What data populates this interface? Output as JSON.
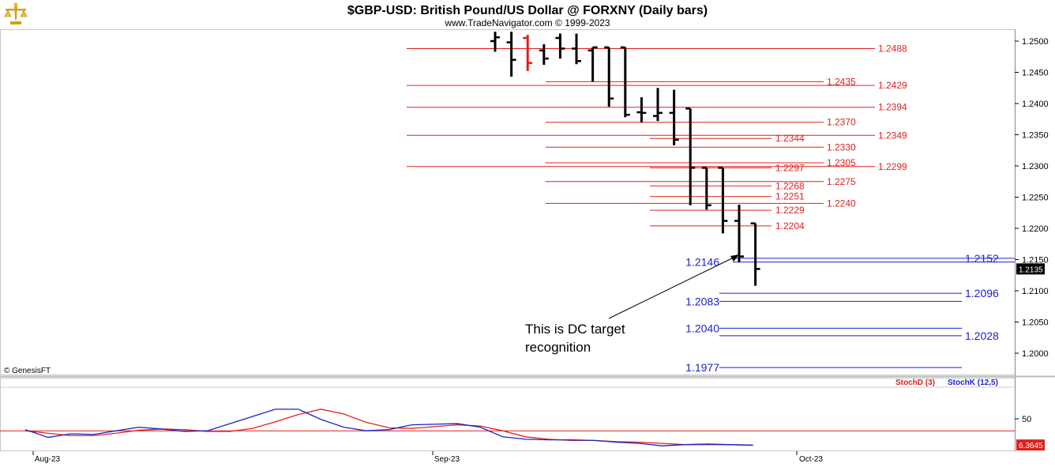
{
  "title": "$GBP-USD:  British Pound/US Dollar @ FORXNY  (Daily bars)",
  "subtitle": "www.TradeNavigator.com © 1999-2023",
  "copyright": "© GenesisFT",
  "annotation": [
    "This is DC target",
    "recognition"
  ],
  "logo_icon": "scales-logo-icon",
  "colors": {
    "bar": "#000000",
    "red_bar": "#e0201a",
    "red_level": "#e0201a",
    "blue_level": "#1e22c8",
    "stoch_d": "#e0201a",
    "stoch_k": "#1e22c8",
    "last_price_tag": "#000000",
    "stoch_tag": "#e0201a"
  },
  "chart_data": [
    {
      "type": "ohlc",
      "name": "price",
      "ylim": [
        1.195,
        1.2515
      ],
      "y_ticks": [
        "1.2500",
        "1.2450",
        "1.2400",
        "1.2350",
        "1.2300",
        "1.2250",
        "1.2200",
        "1.2150",
        "1.2100",
        "1.2050",
        "1.2000"
      ],
      "last_price": "1.2135",
      "bars": [
        {
          "o": 1.25,
          "h": 1.2515,
          "l": 1.2483,
          "c": 1.2506,
          "color": "black"
        },
        {
          "o": 1.2498,
          "h": 1.2515,
          "l": 1.2443,
          "c": 1.247,
          "color": "black"
        },
        {
          "o": 1.2505,
          "h": 1.251,
          "l": 1.2452,
          "c": 1.2465,
          "color": "red"
        },
        {
          "o": 1.2485,
          "h": 1.2495,
          "l": 1.2462,
          "c": 1.2472,
          "color": "black"
        },
        {
          "o": 1.2505,
          "h": 1.2512,
          "l": 1.2472,
          "c": 1.2488,
          "color": "black"
        },
        {
          "o": 1.2488,
          "h": 1.2512,
          "l": 1.2463,
          "c": 1.2468,
          "color": "black"
        },
        {
          "o": 1.2485,
          "h": 1.249,
          "l": 1.2435,
          "c": 1.249,
          "color": "black"
        },
        {
          "o": 1.249,
          "h": 1.249,
          "l": 1.2395,
          "c": 1.2408,
          "color": "black"
        },
        {
          "o": 1.249,
          "h": 1.249,
          "l": 1.2378,
          "c": 1.2382,
          "color": "black"
        },
        {
          "o": 1.2386,
          "h": 1.241,
          "l": 1.237,
          "c": 1.2385,
          "color": "black"
        },
        {
          "o": 1.238,
          "h": 1.2425,
          "l": 1.2372,
          "c": 1.2385,
          "color": "black"
        },
        {
          "o": 1.2385,
          "h": 1.2422,
          "l": 1.2333,
          "c": 1.2342,
          "color": "black"
        },
        {
          "o": 1.2392,
          "h": 1.2392,
          "l": 1.2237,
          "c": 1.2297,
          "color": "black"
        },
        {
          "o": 1.2297,
          "h": 1.2297,
          "l": 1.223,
          "c": 1.2237,
          "color": "black"
        },
        {
          "o": 1.2297,
          "h": 1.2297,
          "l": 1.2192,
          "c": 1.2212,
          "color": "black"
        },
        {
          "o": 1.2212,
          "h": 1.2238,
          "l": 1.2146,
          "c": 1.2155,
          "color": "black"
        },
        {
          "o": 1.2208,
          "h": 1.2208,
          "l": 1.2108,
          "c": 1.2135,
          "color": "black"
        }
      ],
      "red_levels": [
        {
          "value": 1.2488,
          "label": "1.2488",
          "start": 0,
          "label_side": "right"
        },
        {
          "value": 1.2435,
          "label": "1.2435",
          "start": 6,
          "label_side": "mid"
        },
        {
          "value": 1.2429,
          "label": "1.2429",
          "start": 0,
          "label_side": "right"
        },
        {
          "value": 1.2394,
          "label": "1.2394",
          "start": 0,
          "label_side": "right"
        },
        {
          "value": 1.237,
          "label": "1.2370",
          "start": 6,
          "label_side": "mid"
        },
        {
          "value": 1.2349,
          "label": "1.2349",
          "start": 0,
          "label_side": "right"
        },
        {
          "value": 1.2344,
          "label": "1.2344",
          "start": 11,
          "label_side": "near"
        },
        {
          "value": 1.233,
          "label": "1.2330",
          "start": 6,
          "label_side": "mid"
        },
        {
          "value": 1.2305,
          "label": "1.2305",
          "start": 6,
          "label_side": "mid"
        },
        {
          "value": 1.2299,
          "label": "1.2299",
          "start": 0,
          "label_side": "right"
        },
        {
          "value": 1.2297,
          "label": "1.2297",
          "start": 11,
          "label_side": "near"
        },
        {
          "value": 1.2275,
          "label": "1.2275",
          "start": 6,
          "label_side": "mid"
        },
        {
          "value": 1.2268,
          "label": "1.2268",
          "start": 11,
          "label_side": "near"
        },
        {
          "value": 1.2251,
          "label": "1.2251",
          "start": 11,
          "label_side": "near"
        },
        {
          "value": 1.224,
          "label": "1.2240",
          "start": 6,
          "label_side": "mid"
        },
        {
          "value": 1.2229,
          "label": "1.2229",
          "start": 11,
          "label_side": "near"
        },
        {
          "value": 1.2204,
          "label": "1.2204",
          "start": 11,
          "label_side": "near"
        }
      ],
      "blue_levels": [
        {
          "value": 1.2152,
          "label": "1.2152",
          "label_side": "right"
        },
        {
          "value": 1.2146,
          "label": "1.2146",
          "label_side": "left"
        },
        {
          "value": 1.2096,
          "label": "1.2096",
          "label_side": "right"
        },
        {
          "value": 1.2083,
          "label": "1.2083",
          "label_side": "left"
        },
        {
          "value": 1.204,
          "label": "1.2040",
          "label_side": "left"
        },
        {
          "value": 1.2028,
          "label": "1.2028",
          "label_side": "right"
        },
        {
          "value": 1.1977,
          "label": "1.1977",
          "label_side": "left"
        }
      ]
    },
    {
      "type": "line",
      "name": "stochastic",
      "ylim": [
        0,
        100
      ],
      "y_ticks": [
        "50"
      ],
      "reference_line": 30,
      "legend": [
        "StochD (3)",
        "StochK (12,5)"
      ],
      "last_value": "6.3645",
      "x_labels": [
        "Aug-23",
        "Sep-23",
        "Oct-23"
      ],
      "series": [
        {
          "name": "StochD (3)",
          "color": "red",
          "values": [
            30,
            26,
            22,
            22,
            26,
            31,
            33,
            32,
            29,
            29,
            34,
            45,
            57,
            66,
            58,
            44,
            35,
            34,
            37,
            40,
            38,
            30,
            20,
            16,
            14,
            14,
            12,
            11,
            9,
            7,
            7,
            7,
            6
          ]
        },
        {
          "name": "StochK (12,5)",
          "color": "blue",
          "values": [
            32,
            19,
            25,
            24,
            30,
            36,
            33,
            29,
            30,
            42,
            54,
            66,
            66,
            49,
            36,
            30,
            32,
            40,
            41,
            42,
            36,
            20,
            16,
            15,
            15,
            14,
            11,
            9,
            5,
            7,
            8,
            7,
            6
          ]
        }
      ]
    }
  ]
}
